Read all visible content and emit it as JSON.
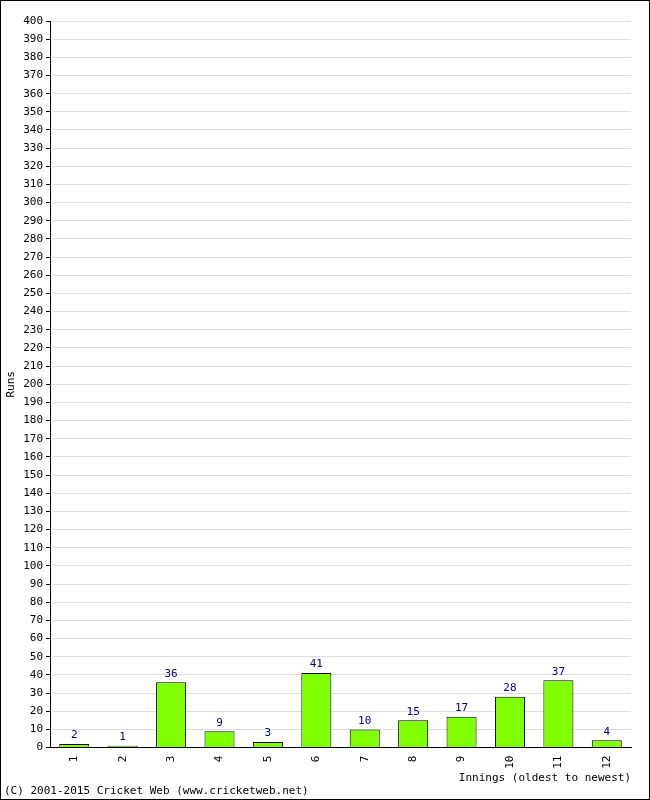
{
  "chart_data": {
    "type": "bar",
    "categories": [
      "1",
      "2",
      "3",
      "4",
      "5",
      "6",
      "7",
      "8",
      "9",
      "10",
      "11",
      "12"
    ],
    "values": [
      2,
      1,
      36,
      9,
      3,
      41,
      10,
      15,
      17,
      28,
      37,
      4
    ],
    "color": "#80ff00",
    "x_label": "Innings (oldest to newest)",
    "y_label": "Runs",
    "ylim": [
      0,
      400
    ],
    "yticks": [
      0,
      10,
      20,
      30,
      40,
      50,
      60,
      70,
      80,
      90,
      100,
      110,
      120,
      130,
      140,
      150,
      160,
      170,
      180,
      190,
      200,
      210,
      220,
      230,
      240,
      250,
      260,
      270,
      280,
      290,
      300,
      310,
      320,
      330,
      340,
      350,
      360,
      370,
      380,
      390,
      400
    ],
    "grid": true,
    "data_labels": true,
    "annotations": [
      "(C) 2001-2015 Cricket Web (www.cricketweb.net)"
    ]
  }
}
